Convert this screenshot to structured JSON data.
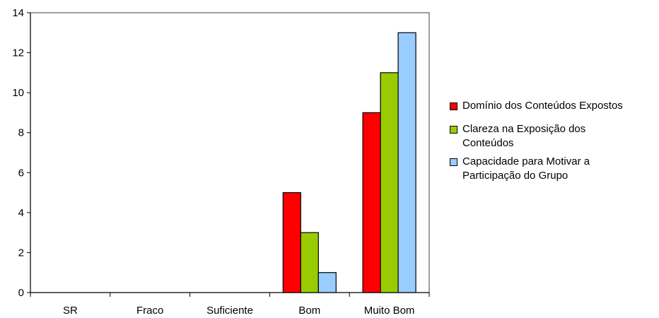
{
  "chart_data": {
    "type": "bar",
    "categories": [
      "SR",
      "Fraco",
      "Suficiente",
      "Bom",
      "Muito Bom"
    ],
    "series": [
      {
        "name": "Domínio dos Conteúdos Expostos",
        "values": [
          0,
          0,
          0,
          5,
          9
        ],
        "color": "#ff0000"
      },
      {
        "name": "Clareza na Exposição dos Conteúdos",
        "values": [
          0,
          0,
          0,
          3,
          11
        ],
        "color": "#99cc00"
      },
      {
        "name": "Capacidade para Motivar a Participação do Grupo",
        "values": [
          0,
          0,
          0,
          1,
          13
        ],
        "color": "#99ccff"
      }
    ],
    "ylim": [
      0,
      14
    ],
    "yticks": [
      0,
      2,
      4,
      6,
      8,
      10,
      12,
      14
    ],
    "title": "",
    "xlabel": "",
    "ylabel": "",
    "grid": false,
    "legend_position": "right"
  }
}
